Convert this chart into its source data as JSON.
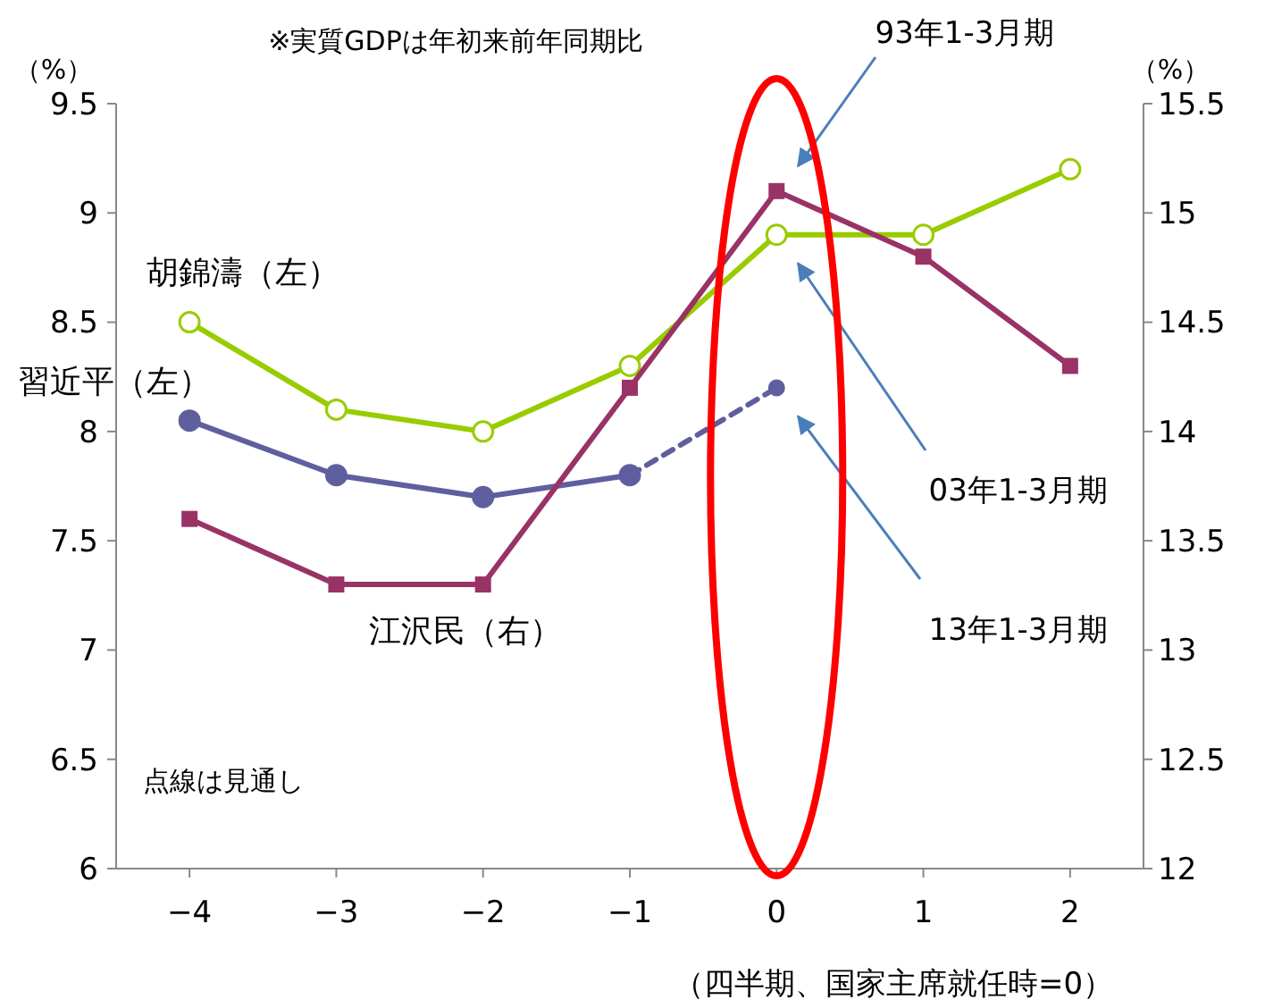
{
  "chart_data": {
    "type": "line",
    "title": "※実質GDPは年初来前年同期比",
    "xlabel": "（四半期、国家主席就任時=0）",
    "ylabel": "（%）",
    "y2label": "（%）",
    "x": [
      -4,
      -3,
      -2,
      -1,
      0,
      1,
      2
    ],
    "xlim": [
      -4.5,
      2.5
    ],
    "xticks": [
      {
        "value": -4,
        "label": "−4"
      },
      {
        "value": -3,
        "label": "−3"
      },
      {
        "value": -2,
        "label": "−2"
      },
      {
        "value": -1,
        "label": "−1"
      },
      0,
      1,
      2
    ],
    "ylim": [
      6,
      9.5
    ],
    "yticks": [
      6,
      6.5,
      7,
      7.5,
      8,
      8.5,
      9,
      9.5
    ],
    "y2lim": [
      12,
      15.5
    ],
    "y2ticks": [
      12,
      12.5,
      13,
      13.5,
      14,
      14.5,
      15,
      15.5
    ],
    "series": [
      {
        "name": "胡錦濤（左）",
        "color": "#99cc00",
        "marker": "circle",
        "values": [
          8.5,
          8.1,
          8.0,
          8.3,
          8.9,
          8.9,
          9.2
        ]
      },
      {
        "name": "習近平（左）",
        "color": "#5f5f9f",
        "marker": "circle",
        "values": [
          8.05,
          7.8,
          7.7,
          7.8,
          null,
          null,
          null
        ]
      },
      {
        "color": "#5f5f9f",
        "marker": "circle",
        "line_style": "dashed",
        "values": [
          null,
          null,
          null,
          7.8,
          8.2,
          null,
          null
        ]
      },
      {
        "name": "江沢民（右）",
        "color": "#993366",
        "marker": "square",
        "axis": "y2",
        "values": [
          13.6,
          13.3,
          13.3,
          14.2,
          15.1,
          14.8,
          14.3
        ]
      }
    ],
    "annotations": [
      "93年1-3月期",
      "03年1-3月期",
      "13年1-3月期",
      "点線は見通し"
    ]
  }
}
